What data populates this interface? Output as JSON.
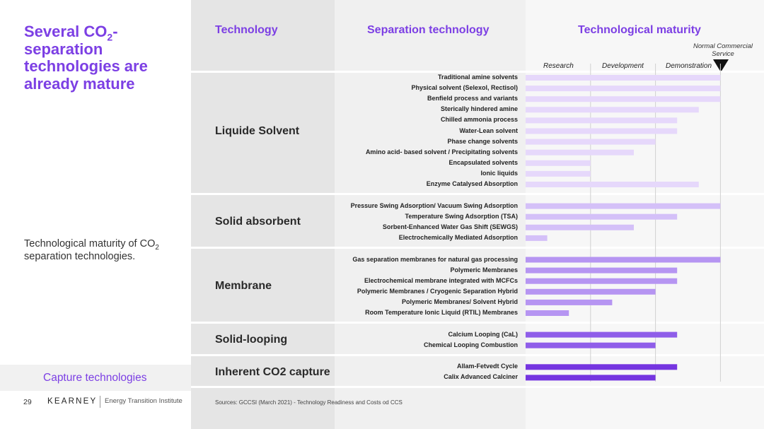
{
  "slide": {
    "title_part1": "Several CO",
    "title_sub": "2",
    "title_part2": "-separation technologies are already mature",
    "caption_part1": "Technological maturity of CO",
    "caption_sub": "2",
    "caption_part2": " separation technologies.",
    "nav_label": "Capture technologies",
    "page_number": "29",
    "logo": "KEARNEY",
    "logo_subtitle": "Energy Transition Institute",
    "source": "Sources: GCCSI (March 2021) - Technology Readiness and Costs od CCS"
  },
  "headers": {
    "technology": "Technology",
    "separation": "Separation technology",
    "maturity": "Technological maturity"
  },
  "colors": {
    "accent": "#7c3fe4",
    "group_colors": [
      "#e6d8fb",
      "#d4c0f8",
      "#b695f2",
      "#8f5ee9",
      "#7535e0"
    ]
  },
  "chart_data": {
    "type": "bar",
    "orientation": "horizontal",
    "xlabel": "Technological maturity",
    "stages": [
      "Research",
      "Development",
      "Demonstration",
      "Normal Commercial Service"
    ],
    "xlim": [
      0,
      9
    ],
    "groups": [
      {
        "name": "Liquide Solvent",
        "rows": [
          {
            "label": "Traditional amine solvents",
            "value": 9
          },
          {
            "label": "Physical solvent (Selexol, Rectisol)",
            "value": 9
          },
          {
            "label": "Benfield process and variants",
            "value": 9
          },
          {
            "label": "Sterically hindered amine",
            "value": 8
          },
          {
            "label": "Chilled ammonia process",
            "value": 7
          },
          {
            "label": "Water-Lean solvent",
            "value": 7
          },
          {
            "label": "Phase change solvents",
            "value": 6
          },
          {
            "label": "Amino acid- based solvent / Precipitating solvents",
            "value": 5
          },
          {
            "label": "Encapsulated solvents",
            "value": 3
          },
          {
            "label": "Ionic liquids",
            "value": 3
          },
          {
            "label": "Enzyme Catalysed Absorption",
            "value": 8
          }
        ]
      },
      {
        "name": "Solid absorbent",
        "rows": [
          {
            "label": "Pressure Swing Adsorption/ Vacuum Swing Adsorption",
            "value": 9
          },
          {
            "label": "Temperature Swing Adsorption (TSA)",
            "value": 7
          },
          {
            "label": "Sorbent-Enhanced  Water Gas Shift (SEWGS)",
            "value": 5
          },
          {
            "label": "Electrochemically  Mediated Adsorption",
            "value": 1
          }
        ]
      },
      {
        "name": "Membrane",
        "rows": [
          {
            "label": "Gas separation  membranes for natural gas  processing",
            "value": 9
          },
          {
            "label": "Polymeric Membranes",
            "value": 7
          },
          {
            "label": "Electrochemical  membrane integrated with  MCFCs",
            "value": 7
          },
          {
            "label": "Polymeric  Membranes / Cryogenic Separation Hybrid",
            "value": 6
          },
          {
            "label": "Polymeric Membranes/  Solvent Hybrid",
            "value": 4
          },
          {
            "label": "Room Temperature   Ionic Liquid (RTIL)   Membranes",
            "value": 2
          }
        ]
      },
      {
        "name": "Solid-looping",
        "rows": [
          {
            "label": "Calcium Looping (CaL)",
            "value": 7
          },
          {
            "label": "Chemical Looping Combustion",
            "value": 6
          }
        ]
      },
      {
        "name": "Inherent CO2 capture",
        "rows": [
          {
            "label": "Allam-Fetvedt Cycle",
            "value": 7
          },
          {
            "label": "Calix Advanced Calciner",
            "value": 6
          }
        ]
      }
    ]
  }
}
